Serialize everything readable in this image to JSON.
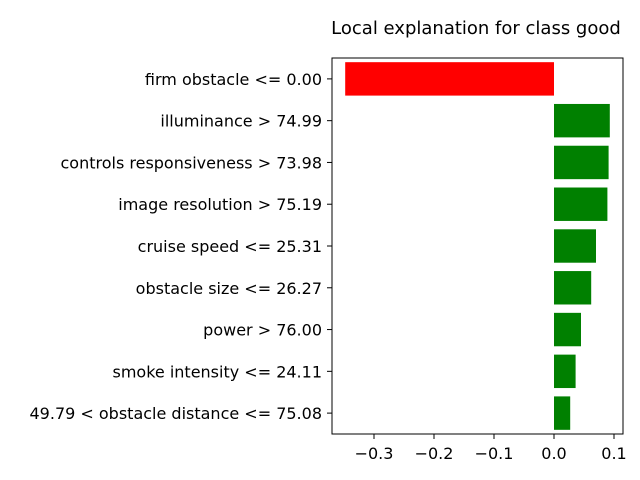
{
  "chart_data": {
    "type": "bar",
    "orientation": "horizontal",
    "title": "Local explanation for class good",
    "xlabel": "",
    "ylabel": "",
    "categories": [
      "firm obstacle <= 0.00",
      "illuminance > 74.99",
      "controls responsiveness > 73.98",
      "image resolution > 75.19",
      "cruise speed <= 25.31",
      "obstacle size <= 26.27",
      "power > 76.00",
      "smoke intensity <= 24.11",
      "49.79 < obstacle distance <= 75.08"
    ],
    "values": [
      -0.348,
      0.093,
      0.091,
      0.089,
      0.07,
      0.062,
      0.045,
      0.036,
      0.027
    ],
    "xlim": [
      -0.37,
      0.115
    ],
    "xticks": [
      -0.3,
      -0.2,
      -0.1,
      0.0,
      0.1
    ],
    "xtick_labels": [
      "−0.3",
      "−0.2",
      "−0.1",
      "0.0",
      "0.1"
    ],
    "grid": false,
    "colors": {
      "positive": "#008000",
      "negative": "#ff0000"
    }
  }
}
